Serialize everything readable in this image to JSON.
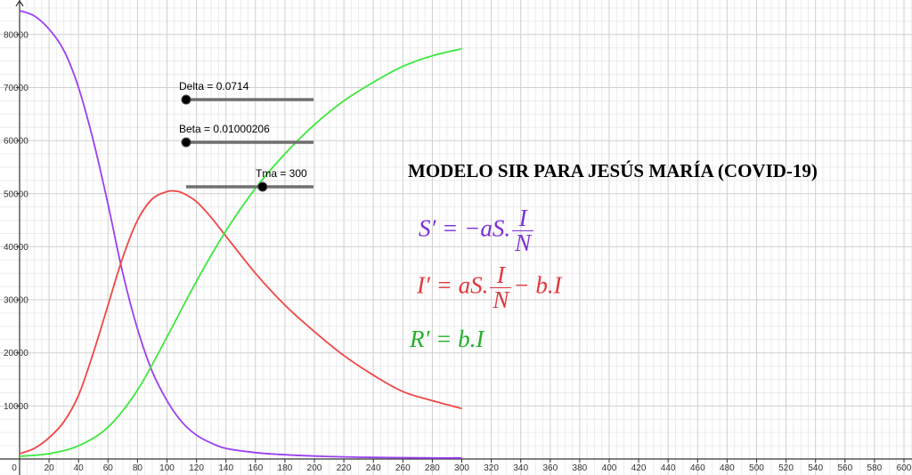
{
  "chart_data": {
    "type": "line",
    "title": "MODELO SIR PARA JESÚS MARÍA (COVID-19)",
    "xlim": [
      0,
      620
    ],
    "ylim": [
      0,
      85000
    ],
    "x_ticks": [
      0,
      20,
      40,
      60,
      80,
      100,
      120,
      140,
      160,
      180,
      200,
      220,
      240,
      260,
      280,
      300,
      320,
      340,
      360,
      380,
      400,
      420,
      440,
      460,
      480,
      500,
      520,
      540,
      560,
      580,
      600
    ],
    "y_ticks": [
      10000,
      20000,
      30000,
      40000,
      50000,
      60000,
      70000,
      80000
    ],
    "grid": true,
    "series": [
      {
        "name": "S",
        "color": "#9b40f0",
        "x": [
          0,
          10,
          20,
          30,
          40,
          50,
          60,
          70,
          80,
          90,
          100,
          110,
          120,
          130,
          140,
          160,
          180,
          200,
          220,
          240,
          260,
          280,
          300
        ],
        "y": [
          84500,
          83500,
          81000,
          77000,
          70000,
          60000,
          48000,
          35000,
          24500,
          16500,
          11000,
          7000,
          4500,
          3000,
          2000,
          1200,
          800,
          550,
          400,
          300,
          250,
          200,
          200
        ]
      },
      {
        "name": "I",
        "color": "#f04646",
        "x": [
          0,
          10,
          20,
          30,
          40,
          50,
          60,
          70,
          80,
          90,
          100,
          105,
          110,
          120,
          130,
          140,
          160,
          180,
          200,
          220,
          240,
          260,
          280,
          300
        ],
        "y": [
          1000,
          2000,
          4000,
          7000,
          12000,
          20000,
          29000,
          38000,
          45000,
          49000,
          50400,
          50500,
          50200,
          48500,
          45500,
          42000,
          35000,
          29000,
          24000,
          19500,
          15800,
          12700,
          11000,
          9500
        ]
      },
      {
        "name": "R",
        "color": "#3ee83e",
        "x": [
          0,
          20,
          40,
          60,
          80,
          100,
          120,
          140,
          160,
          180,
          200,
          220,
          240,
          260,
          280,
          300
        ],
        "y": [
          500,
          1000,
          2500,
          6000,
          13000,
          23000,
          33500,
          43000,
          51000,
          57500,
          63000,
          67500,
          71000,
          74000,
          76000,
          77300
        ]
      }
    ]
  },
  "sliders": [
    {
      "label": "Delta = 0.0714",
      "value": 0.0714,
      "position": 0.0
    },
    {
      "label": "Beta = 0.01000206",
      "value": 0.01000206,
      "position": 0.0
    },
    {
      "label": "Tma = 300",
      "value": 300,
      "position": 0.6
    }
  ],
  "equations": {
    "s": {
      "lhs": "S′ = −aS.",
      "num": "I",
      "den": "N",
      "tail": ""
    },
    "i": {
      "lhs": "I′ = aS.",
      "num": "I",
      "den": "N",
      "tail": "− b.I"
    },
    "r": {
      "text": "R′ = b.I"
    }
  }
}
